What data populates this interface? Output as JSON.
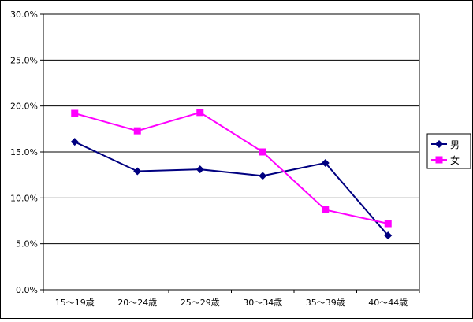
{
  "chart_data": {
    "type": "line",
    "categories": [
      "15～19歳",
      "20～24歳",
      "25～29歳",
      "30～34歳",
      "35～39歳",
      "40～44歳"
    ],
    "y_ticks": [
      "0.0%",
      "5.0%",
      "10.0%",
      "15.0%",
      "20.0%",
      "25.0%",
      "30.0%"
    ],
    "ylim": [
      0,
      30
    ],
    "grid": true,
    "legend_position": "right",
    "series": [
      {
        "name": "男",
        "color": "#000080",
        "marker": "diamond",
        "values": [
          16.1,
          12.9,
          13.1,
          12.4,
          13.8,
          5.9
        ]
      },
      {
        "name": "女",
        "color": "#ff00ff",
        "marker": "square",
        "values": [
          19.2,
          17.3,
          19.3,
          15.0,
          8.7,
          7.2
        ]
      }
    ]
  }
}
